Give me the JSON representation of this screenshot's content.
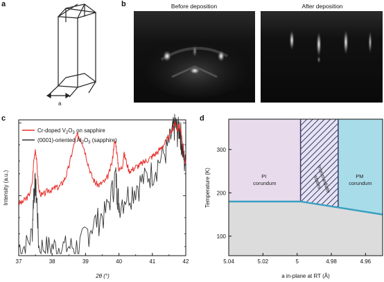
{
  "panels": {
    "a": {
      "letter": "a",
      "lattice_label": "a"
    },
    "b": {
      "letter": "b",
      "before_title": "Before deposition",
      "after_title": "After deposition"
    },
    "c": {
      "letter": "c",
      "legend": [
        {
          "label": "Cr-doped V",
          "sub1": "2",
          "mid": "O",
          "sub2": "3",
          "tail": " on sapphire",
          "color": "#e8302a"
        },
        {
          "label": "(0001)-oriented Al",
          "sub1": "2",
          "mid": "O",
          "sub2": "3",
          "tail": " (sapphire)",
          "color": "#333333"
        }
      ]
    },
    "d": {
      "letter": "d",
      "regions": {
        "pi_line1": "PI",
        "pi_line2": "corundum",
        "mid_line1": "Intermediate",
        "mid_line2": "states",
        "pm_line1": "PM",
        "pm_line2": "corundum"
      }
    }
  },
  "chart_data": [
    {
      "id": "xrd",
      "type": "line",
      "xlabel": "2θ (°)",
      "ylabel": "Intensity (a.u.)",
      "xlim": [
        37,
        42
      ],
      "xticks": [
        37,
        38,
        39,
        40,
        41,
        42
      ],
      "log_y": true,
      "series": [
        {
          "name": "Cr-doped V2O3 on sapphire",
          "color": "#e8302a",
          "points": [
            [
              37.0,
              0.08
            ],
            [
              37.1,
              0.08
            ],
            [
              37.2,
              0.09
            ],
            [
              37.3,
              0.1
            ],
            [
              37.4,
              0.14
            ],
            [
              37.45,
              0.3
            ],
            [
              37.5,
              0.45
            ],
            [
              37.55,
              0.25
            ],
            [
              37.6,
              0.12
            ],
            [
              37.7,
              0.1
            ],
            [
              37.8,
              0.11
            ],
            [
              37.9,
              0.12
            ],
            [
              38.0,
              0.12
            ],
            [
              38.1,
              0.13
            ],
            [
              38.2,
              0.13
            ],
            [
              38.3,
              0.15
            ],
            [
              38.4,
              0.18
            ],
            [
              38.5,
              0.25
            ],
            [
              38.6,
              0.4
            ],
            [
              38.7,
              0.6
            ],
            [
              38.75,
              0.68
            ],
            [
              38.8,
              0.66
            ],
            [
              38.9,
              0.55
            ],
            [
              39.0,
              0.38
            ],
            [
              39.1,
              0.25
            ],
            [
              39.2,
              0.18
            ],
            [
              39.3,
              0.15
            ],
            [
              39.4,
              0.14
            ],
            [
              39.5,
              0.15
            ],
            [
              39.6,
              0.16
            ],
            [
              39.7,
              0.2
            ],
            [
              39.8,
              0.3
            ],
            [
              39.85,
              0.5
            ],
            [
              39.9,
              0.55
            ],
            [
              39.95,
              0.35
            ],
            [
              40.0,
              0.22
            ],
            [
              40.1,
              0.25
            ],
            [
              40.15,
              0.38
            ],
            [
              40.2,
              0.32
            ],
            [
              40.3,
              0.22
            ],
            [
              40.4,
              0.23
            ],
            [
              40.5,
              0.25
            ],
            [
              40.6,
              0.26
            ],
            [
              40.7,
              0.28
            ],
            [
              40.8,
              0.3
            ],
            [
              40.9,
              0.32
            ],
            [
              41.0,
              0.35
            ],
            [
              41.1,
              0.38
            ],
            [
              41.2,
              0.42
            ],
            [
              41.3,
              0.48
            ],
            [
              41.4,
              0.55
            ],
            [
              41.5,
              0.65
            ],
            [
              41.6,
              0.8
            ],
            [
              41.65,
              0.95
            ],
            [
              41.7,
              0.98
            ],
            [
              41.75,
              0.8
            ],
            [
              41.8,
              0.93
            ],
            [
              41.85,
              0.78
            ],
            [
              41.9,
              0.5
            ],
            [
              41.95,
              0.35
            ],
            [
              42.0,
              0.28
            ]
          ]
        },
        {
          "name": "(0001)-oriented Al2O3 (sapphire)",
          "color": "#333333",
          "points": [
            [
              37.0,
              0.02
            ],
            [
              37.2,
              0.02
            ],
            [
              37.4,
              0.03
            ],
            [
              37.45,
              0.12
            ],
            [
              37.5,
              0.15
            ],
            [
              37.55,
              0.08
            ],
            [
              37.6,
              0.02
            ],
            [
              37.8,
              0.02
            ],
            [
              38.0,
              0.02
            ],
            [
              38.2,
              0.02
            ],
            [
              38.4,
              0.02
            ],
            [
              38.6,
              0.02
            ],
            [
              38.8,
              0.02
            ],
            [
              39.0,
              0.03
            ],
            [
              39.2,
              0.04
            ],
            [
              39.4,
              0.05
            ],
            [
              39.6,
              0.06
            ],
            [
              39.8,
              0.12
            ],
            [
              39.9,
              0.2
            ],
            [
              39.95,
              0.12
            ],
            [
              40.0,
              0.08
            ],
            [
              40.2,
              0.1
            ],
            [
              40.4,
              0.12
            ],
            [
              40.6,
              0.15
            ],
            [
              40.8,
              0.18
            ],
            [
              41.0,
              0.22
            ],
            [
              41.2,
              0.3
            ],
            [
              41.4,
              0.42
            ],
            [
              41.5,
              0.55
            ],
            [
              41.6,
              0.75
            ],
            [
              41.65,
              0.92
            ],
            [
              41.7,
              0.95
            ],
            [
              41.75,
              0.78
            ],
            [
              41.8,
              0.9
            ],
            [
              41.85,
              0.72
            ],
            [
              41.9,
              0.45
            ],
            [
              41.95,
              0.32
            ],
            [
              42.0,
              0.25
            ]
          ]
        }
      ]
    },
    {
      "id": "phase",
      "type": "area",
      "xlabel": "a in-plane at RT (Å)",
      "ylabel": "Temperature (K)",
      "xlim": [
        5.04,
        4.95
      ],
      "ylim": [
        55,
        370
      ],
      "xticks": [
        5.04,
        5.02,
        5.0,
        4.98,
        4.96
      ],
      "xtick_labels": [
        "5.04",
        "5.02",
        "5",
        "4.98",
        "4.96"
      ],
      "yticks": [
        100,
        200,
        300
      ],
      "boundary_line": [
        [
          5.04,
          180
        ],
        [
          4.998,
          180
        ],
        [
          4.95,
          150
        ]
      ],
      "region_bounds": {
        "pi_pm_intermediate_left": 4.998,
        "intermediate_right": 4.976
      },
      "colors": {
        "pi": "#e8dcec",
        "pm": "#a9dce9",
        "low": "#dcdcdc",
        "hatch": "#3d3a6b",
        "line": "#3a9fc1"
      }
    }
  ]
}
